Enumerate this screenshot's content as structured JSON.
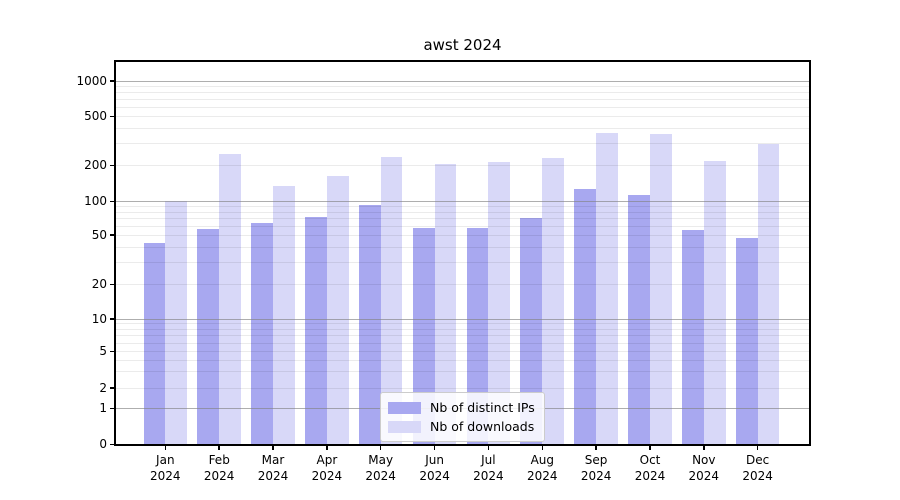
{
  "title": "awst 2024",
  "chart_data": {
    "type": "bar",
    "title": "awst 2024",
    "categories": [
      "Jan 2024",
      "Feb 2024",
      "Mar 2024",
      "Apr 2024",
      "May 2024",
      "Jun 2024",
      "Jul 2024",
      "Aug 2024",
      "Sep 2024",
      "Oct 2024",
      "Nov 2024",
      "Dec 2024"
    ],
    "series": [
      {
        "name": "Nb of distinct IPs",
        "color": "#a8a8f0",
        "values": [
          43,
          56,
          63,
          72,
          92,
          57,
          57,
          70,
          125,
          112,
          55,
          47
        ]
      },
      {
        "name": "Nb of downloads",
        "color": "#d8d8f8",
        "values": [
          100,
          248,
          134,
          162,
          234,
          203,
          210,
          227,
          366,
          355,
          215,
          295
        ]
      }
    ],
    "ylabel": "",
    "xlabel": "",
    "yscale": "symlog",
    "ytick_labels": [
      "0",
      "1",
      "2",
      "5",
      "10",
      "20",
      "50",
      "100",
      "200",
      "500",
      "1000"
    ],
    "yticks": [
      0,
      1,
      2,
      5,
      10,
      20,
      50,
      100,
      200,
      500,
      1000
    ],
    "ylim": [
      0,
      1500
    ],
    "grid": true,
    "legend_position": "lower center inside"
  },
  "legend": {
    "items": [
      {
        "label": "Nb of distinct IPs",
        "color": "#a8a8f0"
      },
      {
        "label": "Nb of downloads",
        "color": "#d8d8f8"
      }
    ]
  },
  "colors": {
    "bar_dark": "#a8a8f0",
    "bar_light": "#d8d8f8",
    "grid_major": "#828282",
    "grid_minor": "#e8e8e8",
    "spine": "#000000",
    "legend_border": "#cccccc"
  }
}
